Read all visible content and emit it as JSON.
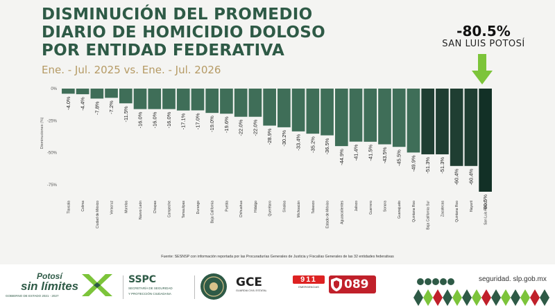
{
  "header": {
    "title_lines": [
      "DISMINUCIÓN DEL PROMEDIO",
      "DIARIO DE HOMICIDIO DOLOSO",
      "POR ENTIDAD FEDERATIVA"
    ],
    "subtitle": "Ene. - Jul. 2025 vs. Ene. - Jul. 2026"
  },
  "highlight": {
    "value": "-80.5%",
    "state": "SAN LUIS POTOSÍ",
    "arrow_icon": "arrow-down-icon"
  },
  "chart_data": {
    "type": "bar",
    "ylabel": "Disminuciones (%)",
    "yticks": [
      "0%",
      "-25%",
      "-50%",
      "-75%"
    ],
    "ylim": [
      -80.5,
      0
    ],
    "categories": [
      "Tlaxcala",
      "Colima",
      "Ciudad de México",
      "Veracruz",
      "Morelos",
      "Nuevo León",
      "Chiapas",
      "Campeche",
      "Tamaulipas",
      "Durango",
      "Baja California",
      "Puebla",
      "Chihuahua",
      "Hidalgo",
      "Querétaro",
      "Sinaloa",
      "Michoacán",
      "Tabasco",
      "Estado de México",
      "Aguascalientes",
      "Jalisco",
      "Guerrero",
      "Sonora",
      "Guanajuato",
      "Quintana Roo",
      "Baja California Sur",
      "Zacatecas",
      "Quintana Roo",
      "Nayarit",
      "San Luis Potosí"
    ],
    "values": [
      -4.0,
      -4.4,
      -7.8,
      -7.2,
      -11.5,
      -16.0,
      -16.0,
      -16.0,
      -17.1,
      -17.0,
      -19.0,
      -19.6,
      -22.0,
      -22.0,
      -28.9,
      -30.2,
      -33.4,
      -35.2,
      -36.5,
      -44.9,
      -41.4,
      -41.5,
      -43.5,
      -45.5,
      -49.9,
      -51.3,
      -51.3,
      -60.4,
      -60.4,
      -80.5
    ],
    "value_labels": [
      "-4.0%",
      "-4.4%",
      "-7.8%",
      "-7.2%",
      "-11.5%",
      "-16.0%",
      "-16.0%",
      "-16.0%",
      "-17.1%",
      "-17.0%",
      "-19.0%",
      "-19.6%",
      "-22.0%",
      "-22.0%",
      "-28.9%",
      "-30.2%",
      "-33.4%",
      "-35.2%",
      "-36.5%",
      "-44.9%",
      "-41.4%",
      "-41.5%",
      "-43.5%",
      "-45.5%",
      "-49.9%",
      "-51.3%",
      "-51.3%",
      "-60.4%",
      "-60.4%",
      "-80.5%"
    ],
    "colors": {
      "light": "#3f6e58",
      "dark": "#1f3e32",
      "last": "#123026"
    },
    "dark_from_index": 25
  },
  "source": "Fuente: SESNSP con información reportada por las Procuradurías Generales de Justicia y Fiscalías Generales de las 32 entidades federativas",
  "footer": {
    "potosi": {
      "line1": "Potosí",
      "line2": "sin límites",
      "line3": "GOBIERNO DE ESTADO 2021 - 2027"
    },
    "sspc": {
      "brand": "SSPC",
      "line1": "SECRETARÍA DE SEGURIDAD",
      "line2": "Y PROTECCIÓN CIUDADANA"
    },
    "gce": {
      "brand": "GCE",
      "small": "GUARDIA CIVIL ESTATAL"
    },
    "e911": {
      "brand": "911",
      "small": "EMERGENCIAS"
    },
    "denuncia": {
      "brand": "089"
    },
    "website": "seguridad. slp.gob.mx",
    "social_icons": [
      "facebook-icon",
      "instagram-icon",
      "x-icon",
      "youtube-icon",
      "tiktok-icon"
    ]
  }
}
